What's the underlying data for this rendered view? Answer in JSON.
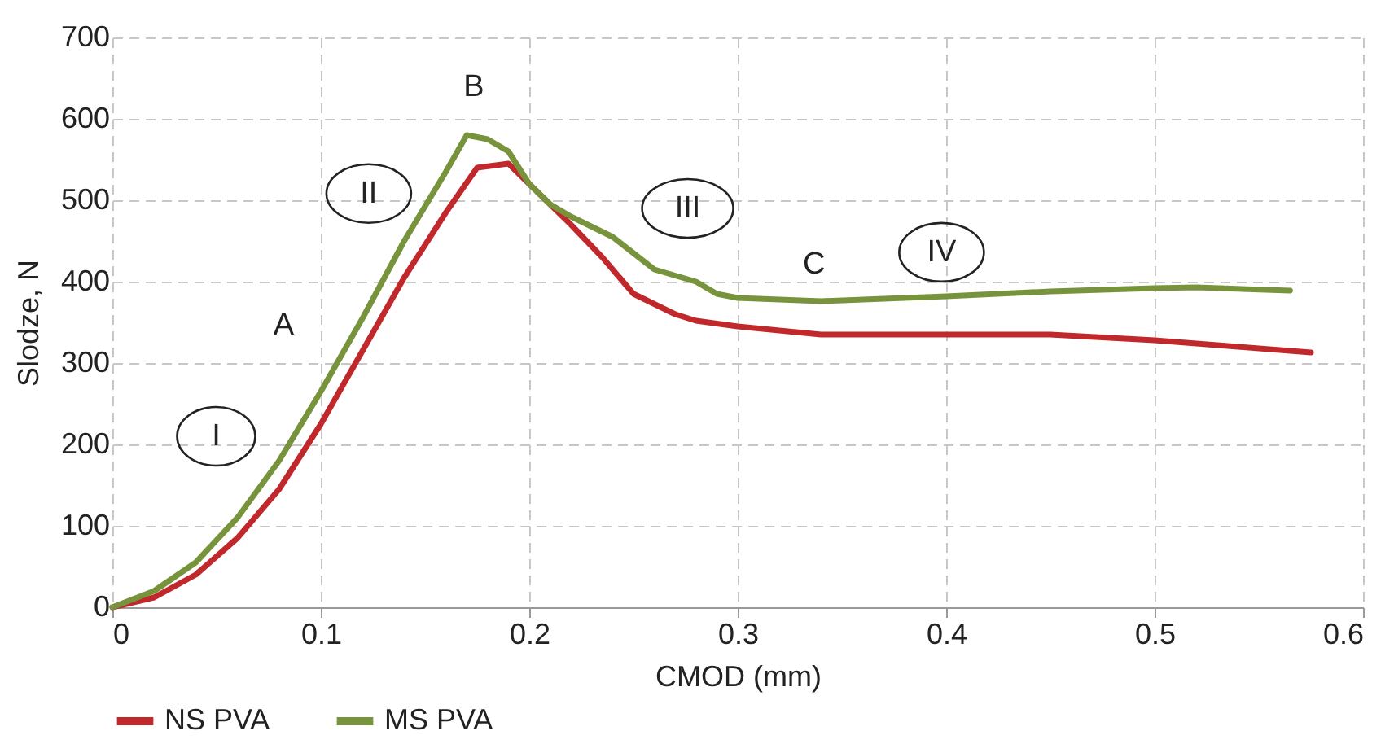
{
  "chart_data": {
    "type": "line",
    "xlabel": "CMOD (mm)",
    "ylabel": "Slodze, N",
    "xlim": [
      0,
      0.6
    ],
    "xticks": [
      0,
      0.1,
      0.2,
      0.3,
      0.4,
      0.5,
      0.6
    ],
    "ylim": [
      0,
      700
    ],
    "yticks": [
      0,
      100,
      200,
      300,
      400,
      500,
      600,
      700
    ],
    "grid": true,
    "legend": "bottom",
    "line_style": "solid",
    "marker": "none",
    "series": [
      {
        "name": "NS PVA",
        "color": "#c0282b",
        "x": [
          0,
          0.02,
          0.04,
          0.06,
          0.08,
          0.1,
          0.12,
          0.14,
          0.16,
          0.175,
          0.19,
          0.2,
          0.21,
          0.22,
          0.235,
          0.25,
          0.27,
          0.28,
          0.3,
          0.34,
          0.4,
          0.45,
          0.5,
          0.54,
          0.575
        ],
        "values": [
          0,
          12,
          40,
          85,
          145,
          225,
          315,
          405,
          485,
          540,
          545,
          520,
          495,
          470,
          430,
          385,
          360,
          352,
          345,
          335,
          335,
          335,
          328,
          320,
          313
        ]
      },
      {
        "name": "MS PVA",
        "color": "#77933c",
        "x": [
          0,
          0.02,
          0.04,
          0.06,
          0.08,
          0.1,
          0.12,
          0.14,
          0.16,
          0.17,
          0.18,
          0.19,
          0.2,
          0.21,
          0.22,
          0.24,
          0.26,
          0.28,
          0.29,
          0.3,
          0.34,
          0.4,
          0.45,
          0.5,
          0.52,
          0.565
        ],
        "values": [
          0,
          20,
          55,
          110,
          180,
          265,
          355,
          450,
          535,
          580,
          575,
          560,
          520,
          495,
          480,
          455,
          415,
          400,
          385,
          380,
          376,
          382,
          388,
          392,
          393,
          389
        ]
      }
    ],
    "annotations": [
      "I",
      "II",
      "III",
      "IV",
      "A",
      "B",
      "C"
    ]
  }
}
